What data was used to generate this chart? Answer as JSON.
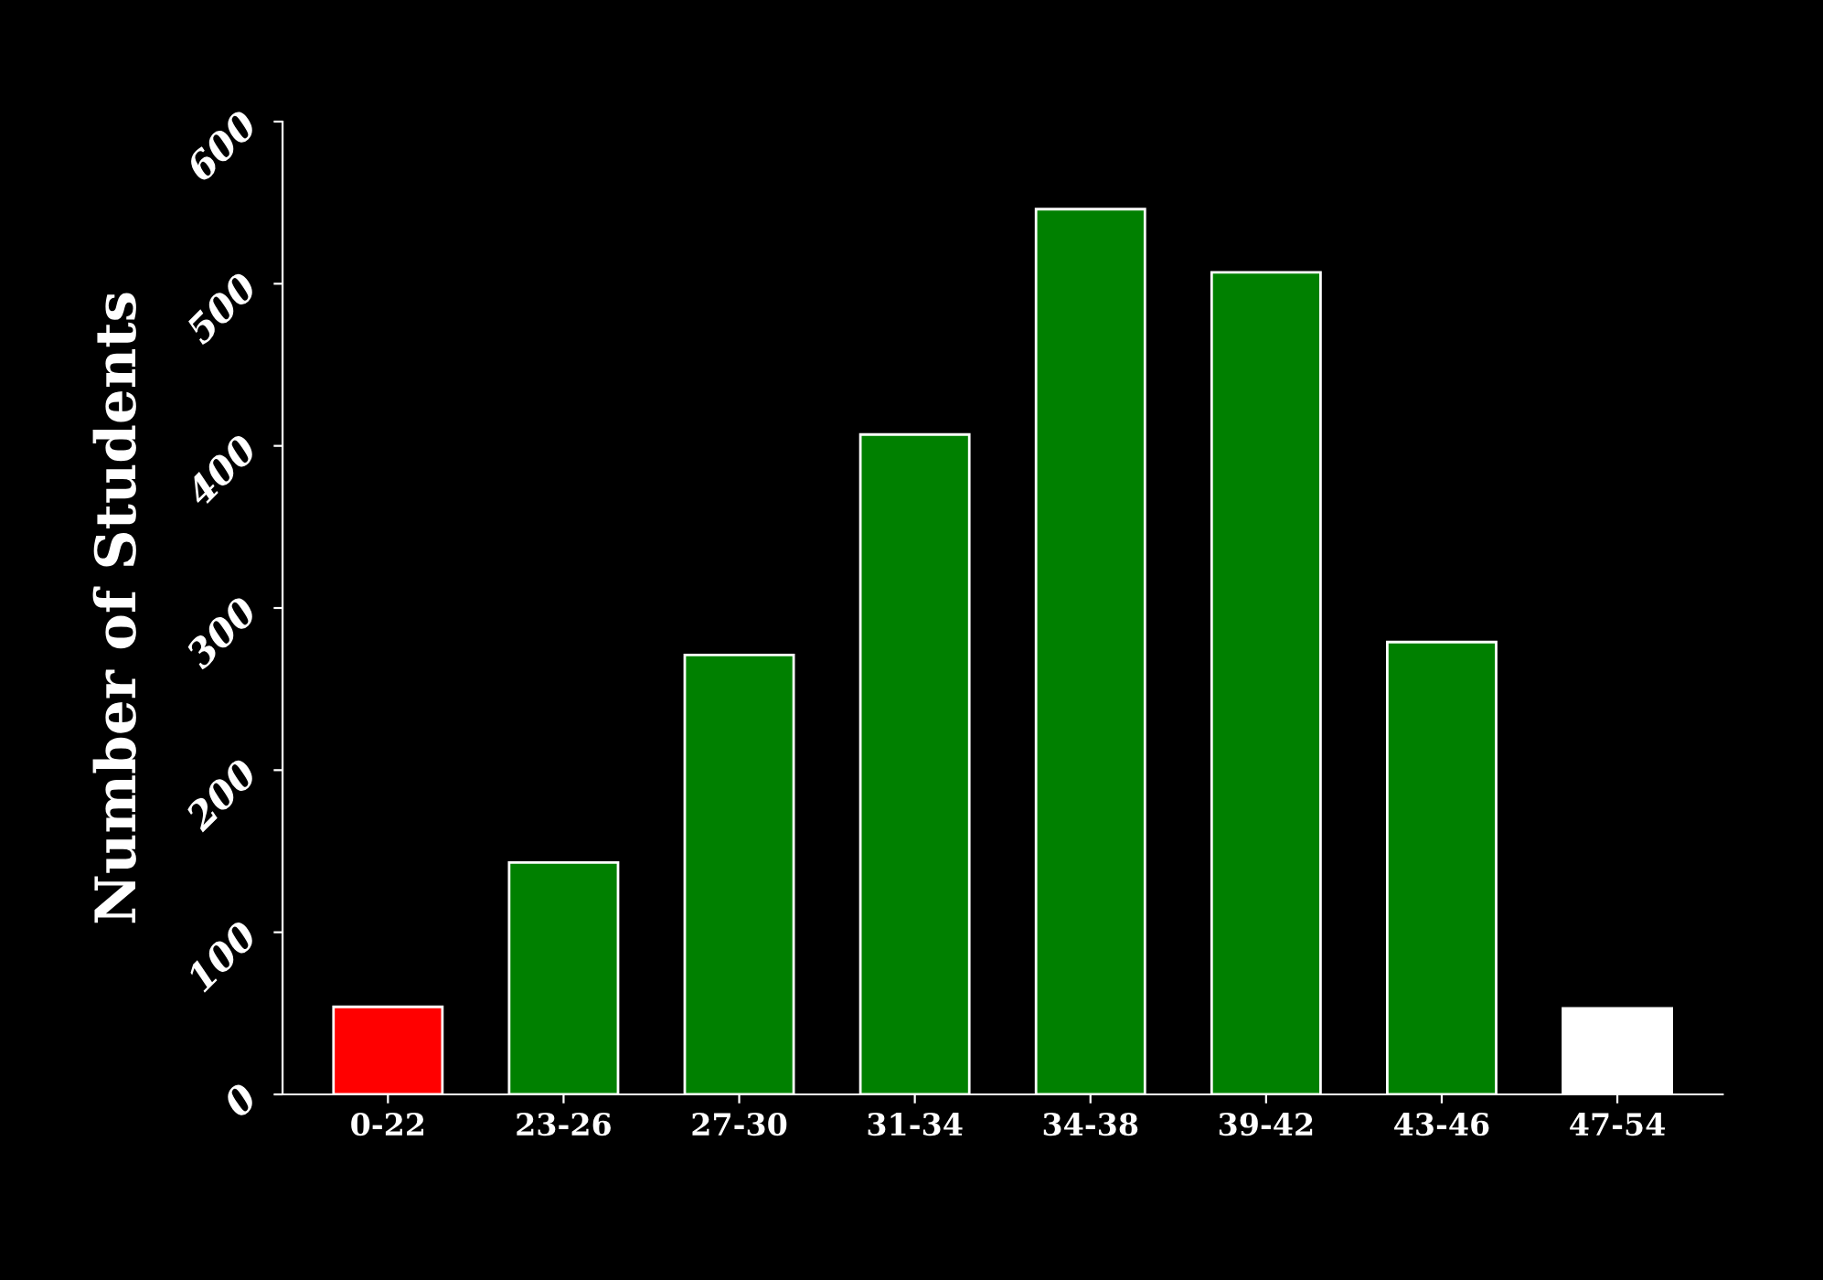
{
  "chart_data": {
    "type": "bar",
    "ylabel": "Number of Students",
    "categories": [
      "0-22",
      "23-26",
      "27-30",
      "31-34",
      "34-38",
      "39-42",
      "43-46",
      "47-54"
    ],
    "values": [
      54,
      143,
      271,
      407,
      546,
      507,
      279,
      53
    ],
    "colors": [
      "#ff0000",
      "#008000",
      "#008000",
      "#008000",
      "#008000",
      "#008000",
      "#008000",
      "#ffffff"
    ],
    "ylim": [
      0,
      600
    ],
    "yticks": [
      0,
      100,
      200,
      300,
      400,
      500,
      600
    ],
    "grid": false,
    "legend": false
  }
}
